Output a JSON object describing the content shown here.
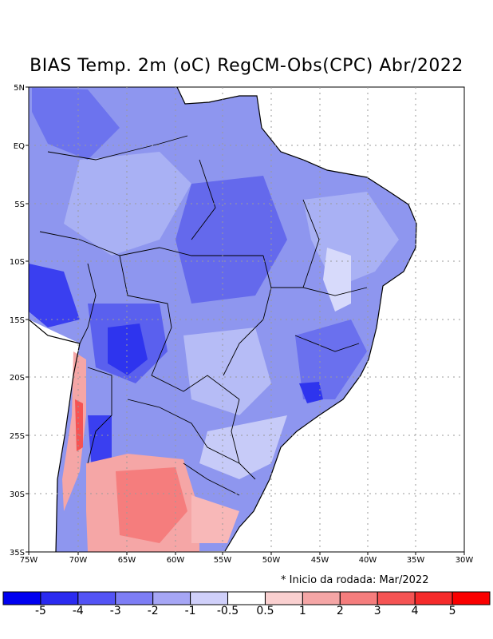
{
  "title": "BIAS Temp. 2m (oC) RegCM-Obs(CPC) Abr/2022",
  "note": "* Inicio da rodada: Mar/2022",
  "lat_labels": [
    "5N",
    "EQ",
    "5S",
    "10S",
    "15S",
    "20S",
    "25S",
    "30S",
    "35S"
  ],
  "lon_labels": [
    "75W",
    "70W",
    "65W",
    "60W",
    "55W",
    "50W",
    "45W",
    "40W",
    "35W",
    "30W"
  ],
  "colorbar": {
    "labels": [
      "-5",
      "-4",
      "-3",
      "-2",
      "-1",
      "-0.5",
      "0.5",
      "1",
      "2",
      "3",
      "4",
      "5"
    ],
    "colors": [
      "#0000f0",
      "#2a2af0",
      "#5353f5",
      "#7d7df5",
      "#a6a6f5",
      "#d0d0fa",
      "#ffffff",
      "#fad0d0",
      "#f5a6a6",
      "#f57d7d",
      "#f55353",
      "#f52a2a",
      "#fa0000"
    ]
  },
  "colors": {
    "ocean": "#ffffff",
    "grid": "#9a9a9a"
  }
}
